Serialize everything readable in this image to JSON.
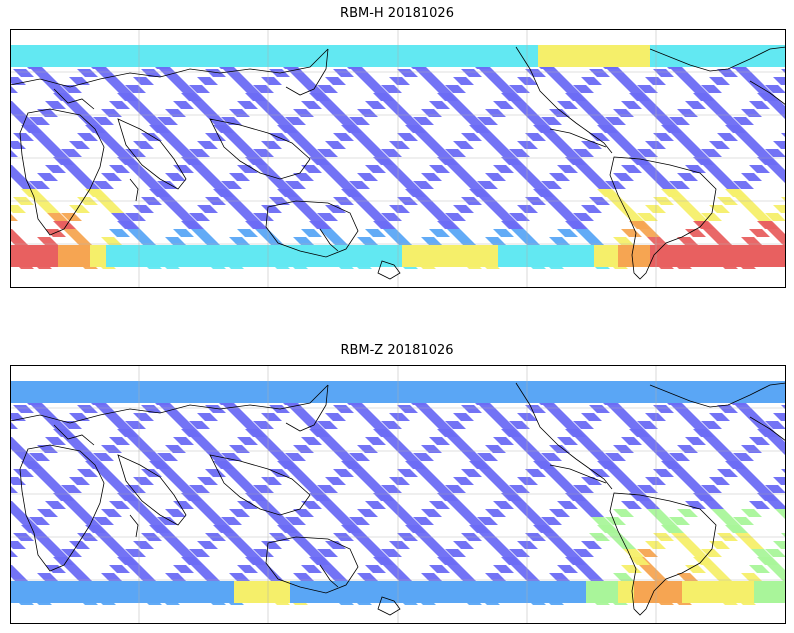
{
  "figure": {
    "panels": [
      {
        "id": "top",
        "title": "RBM-H 20181026"
      },
      {
        "id": "bottom",
        "title": "RBM-Z 20181026"
      }
    ]
  },
  "colors": {
    "low": "#6b6bf4",
    "mid_low": "#5aa6f5",
    "mid": "#62e8f2",
    "mid_high": "#a9f59a",
    "high": "#f5ef6a",
    "higher": "#f6a552",
    "highest": "#e86060",
    "coast": "#000000",
    "grid": "#b0b0b0"
  },
  "map": {
    "projection": "equirectangular",
    "lon_range": [
      -180,
      180
    ],
    "gridlines": true,
    "coastlines": true,
    "pattern": "diamond satellite swath grid"
  }
}
